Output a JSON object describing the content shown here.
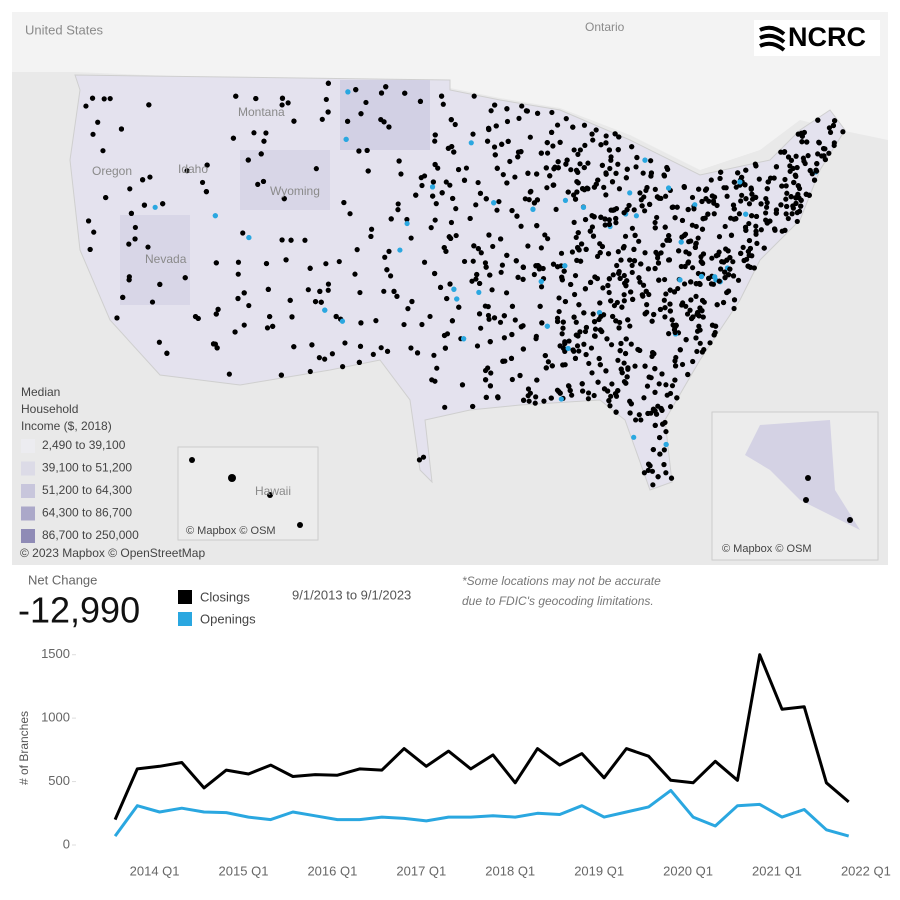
{
  "map": {
    "labels": [
      "United States",
      "Ontario",
      "Montana",
      "Idaho",
      "Oregon",
      "Wyoming",
      "Nevada",
      "Hawaii"
    ],
    "logo": "NCRC",
    "legend": {
      "title": [
        "Median",
        "Household",
        "Income ($, 2018)"
      ],
      "items": [
        "2,490 to 39,100",
        "39,100 to 51,200",
        "51,200 to 64,300",
        "64,300 to 86,700",
        "86,700 to 250,000"
      ]
    },
    "credits": [
      "© Mapbox © OSM",
      "© Mapbox © OSM",
      "© 2023 Mapbox © OpenStreetMap"
    ]
  },
  "summary": {
    "label": "Net Change",
    "value": "-12,990",
    "date_range": "9/1/2013 to 9/1/2023",
    "note": [
      "*Some locations may not be accurate",
      "due to FDIC's geocoding limitations."
    ]
  },
  "chart_data": {
    "type": "line",
    "ylabel": "# of Branches",
    "categories": [
      null,
      null,
      "2014 Q1",
      null,
      null,
      null,
      "2015 Q1",
      null,
      null,
      null,
      "2016 Q1",
      null,
      null,
      null,
      "2017 Q1",
      null,
      null,
      null,
      "2018 Q1",
      null,
      null,
      null,
      "2019 Q1",
      null,
      null,
      null,
      "2020 Q1",
      null,
      null,
      null,
      "2021 Q1",
      null,
      null,
      null,
      "2022 Q1"
    ],
    "series": [
      {
        "name": "Closings",
        "color": "#000000",
        "values": [
          200,
          600,
          620,
          650,
          450,
          590,
          560,
          630,
          540,
          555,
          550,
          600,
          590,
          760,
          620,
          740,
          600,
          710,
          490,
          760,
          630,
          720,
          530,
          760,
          700,
          510,
          490,
          660,
          510,
          1500,
          1070,
          1090,
          490,
          340,
          null
        ]
      },
      {
        "name": "Openings",
        "color": "#2aa7e0",
        "values": [
          70,
          310,
          260,
          290,
          260,
          255,
          220,
          200,
          260,
          230,
          200,
          200,
          220,
          210,
          190,
          220,
          220,
          230,
          220,
          250,
          240,
          310,
          220,
          260,
          300,
          430,
          220,
          150,
          310,
          320,
          220,
          280,
          120,
          70,
          null
        ]
      }
    ],
    "ylim": [
      0,
      1600
    ],
    "yticks": [
      0,
      500,
      1000,
      1500
    ]
  }
}
